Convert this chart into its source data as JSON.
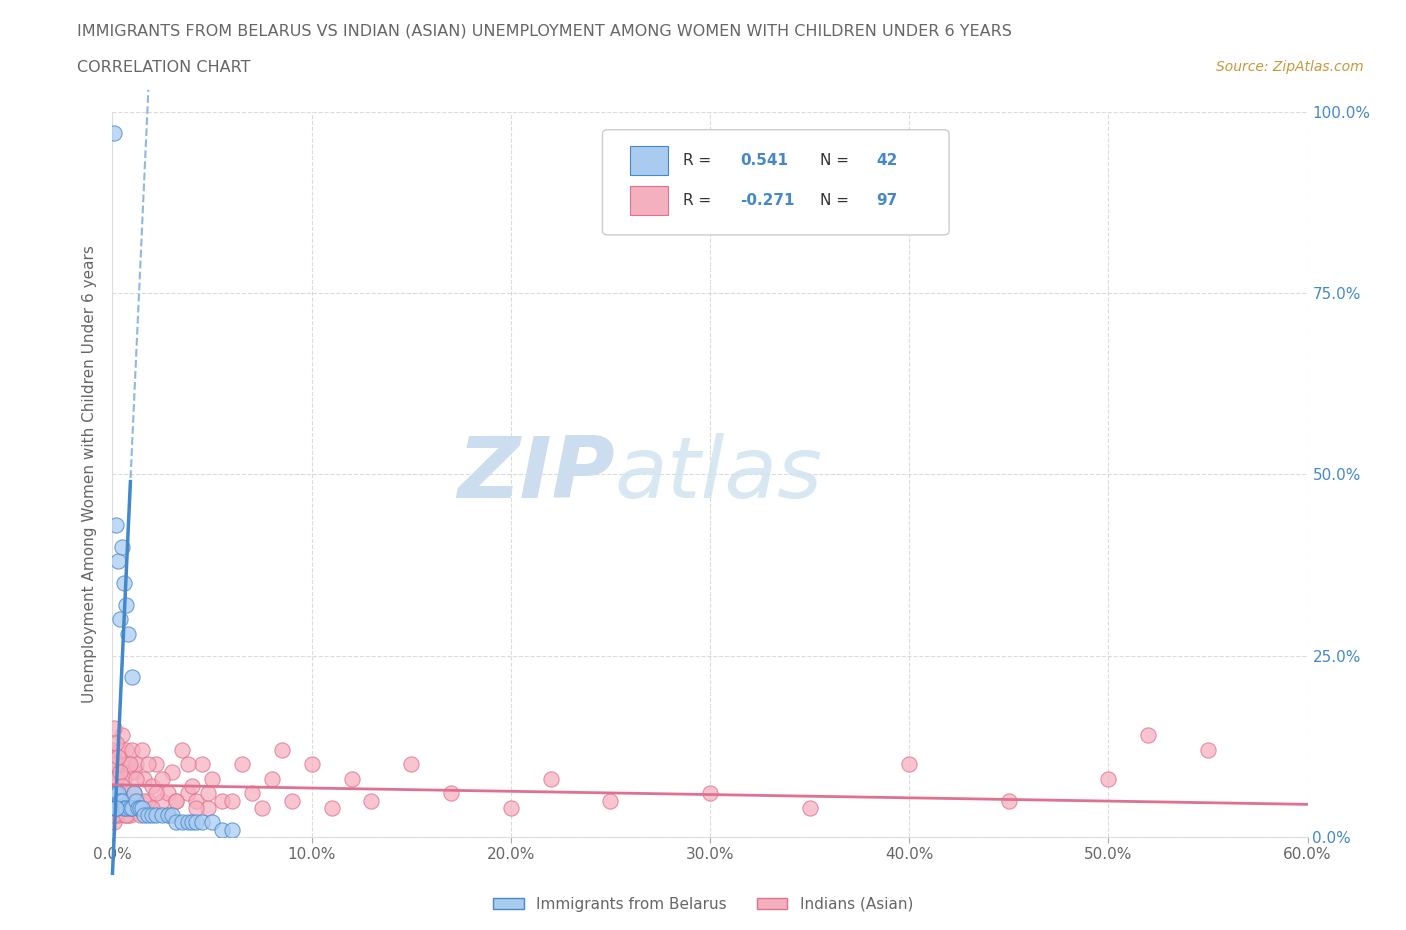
{
  "title": "IMMIGRANTS FROM BELARUS VS INDIAN (ASIAN) UNEMPLOYMENT AMONG WOMEN WITH CHILDREN UNDER 6 YEARS",
  "subtitle": "CORRELATION CHART",
  "source": "Source: ZipAtlas.com",
  "xlabel_blue": "Immigrants from Belarus",
  "xlabel_pink": "Indians (Asian)",
  "ylabel": "Unemployment Among Women with Children Under 6 years",
  "xlim": [
    0.0,
    0.6
  ],
  "ylim": [
    0.0,
    1.0
  ],
  "xticks": [
    0.0,
    0.1,
    0.2,
    0.3,
    0.4,
    0.5,
    0.6
  ],
  "xticklabels": [
    "0.0%",
    "10.0%",
    "20.0%",
    "30.0%",
    "40.0%",
    "50.0%",
    "60.0%"
  ],
  "yticks": [
    0.0,
    0.25,
    0.5,
    0.75,
    1.0
  ],
  "yticklabels": [
    "0.0%",
    "25.0%",
    "50.0%",
    "75.0%",
    "100.0%"
  ],
  "blue_R": 0.541,
  "blue_N": 42,
  "pink_R": -0.271,
  "pink_N": 97,
  "blue_color": "#aacbf0",
  "pink_color": "#f5b0c0",
  "blue_line_color": "#4488cc",
  "pink_line_color": "#e07090",
  "watermark_zip": "ZIP",
  "watermark_atlas": "atlas",
  "watermark_color": "#ccddf0",
  "background_color": "#ffffff",
  "grid_color": "#cccccc",
  "title_color": "#666666",
  "ytick_color": "#4488cc",
  "xtick_color": "#666666",
  "source_color": "#c8973a",
  "blue_scatter_x": [
    0.001,
    0.001,
    0.001,
    0.002,
    0.002,
    0.002,
    0.003,
    0.003,
    0.004,
    0.004,
    0.005,
    0.005,
    0.006,
    0.006,
    0.007,
    0.007,
    0.008,
    0.009,
    0.01,
    0.01,
    0.011,
    0.012,
    0.013,
    0.014,
    0.015,
    0.016,
    0.018,
    0.02,
    0.022,
    0.025,
    0.028,
    0.03,
    0.032,
    0.035,
    0.038,
    0.04,
    0.042,
    0.045,
    0.05,
    0.055,
    0.06,
    0.002
  ],
  "blue_scatter_y": [
    0.97,
    0.06,
    0.04,
    0.43,
    0.06,
    0.04,
    0.38,
    0.06,
    0.3,
    0.05,
    0.4,
    0.05,
    0.35,
    0.04,
    0.32,
    0.04,
    0.28,
    0.04,
    0.22,
    0.04,
    0.06,
    0.05,
    0.04,
    0.04,
    0.04,
    0.03,
    0.03,
    0.03,
    0.03,
    0.03,
    0.03,
    0.03,
    0.02,
    0.02,
    0.02,
    0.02,
    0.02,
    0.02,
    0.02,
    0.01,
    0.01,
    0.04
  ],
  "pink_scatter_x": [
    0.001,
    0.001,
    0.001,
    0.002,
    0.002,
    0.003,
    0.003,
    0.004,
    0.004,
    0.005,
    0.005,
    0.006,
    0.006,
    0.007,
    0.007,
    0.008,
    0.008,
    0.009,
    0.009,
    0.01,
    0.01,
    0.011,
    0.012,
    0.013,
    0.015,
    0.016,
    0.018,
    0.02,
    0.022,
    0.025,
    0.028,
    0.03,
    0.032,
    0.035,
    0.038,
    0.04,
    0.042,
    0.045,
    0.048,
    0.05,
    0.055,
    0.06,
    0.065,
    0.07,
    0.075,
    0.08,
    0.085,
    0.09,
    0.1,
    0.11,
    0.12,
    0.13,
    0.15,
    0.17,
    0.2,
    0.22,
    0.25,
    0.3,
    0.35,
    0.4,
    0.45,
    0.5,
    0.52,
    0.55,
    0.001,
    0.001,
    0.002,
    0.002,
    0.003,
    0.003,
    0.004,
    0.005,
    0.006,
    0.007,
    0.008,
    0.009,
    0.01,
    0.011,
    0.012,
    0.014,
    0.016,
    0.018,
    0.02,
    0.022,
    0.025,
    0.028,
    0.032,
    0.038,
    0.042,
    0.048,
    0.001,
    0.001,
    0.002,
    0.002,
    0.003,
    0.004,
    0.005
  ],
  "pink_scatter_y": [
    0.12,
    0.06,
    0.02,
    0.1,
    0.04,
    0.09,
    0.03,
    0.12,
    0.04,
    0.14,
    0.05,
    0.1,
    0.03,
    0.12,
    0.04,
    0.1,
    0.03,
    0.09,
    0.03,
    0.12,
    0.04,
    0.09,
    0.1,
    0.05,
    0.12,
    0.08,
    0.05,
    0.07,
    0.1,
    0.05,
    0.06,
    0.09,
    0.05,
    0.12,
    0.06,
    0.07,
    0.05,
    0.1,
    0.04,
    0.08,
    0.05,
    0.05,
    0.1,
    0.06,
    0.04,
    0.08,
    0.12,
    0.05,
    0.1,
    0.04,
    0.08,
    0.05,
    0.1,
    0.06,
    0.04,
    0.08,
    0.05,
    0.06,
    0.04,
    0.1,
    0.05,
    0.08,
    0.14,
    0.12,
    0.08,
    0.03,
    0.06,
    0.1,
    0.04,
    0.06,
    0.04,
    0.06,
    0.08,
    0.03,
    0.05,
    0.1,
    0.04,
    0.06,
    0.08,
    0.03,
    0.05,
    0.1,
    0.04,
    0.06,
    0.08,
    0.03,
    0.05,
    0.1,
    0.04,
    0.06,
    0.15,
    0.07,
    0.13,
    0.08,
    0.11,
    0.09,
    0.07
  ]
}
